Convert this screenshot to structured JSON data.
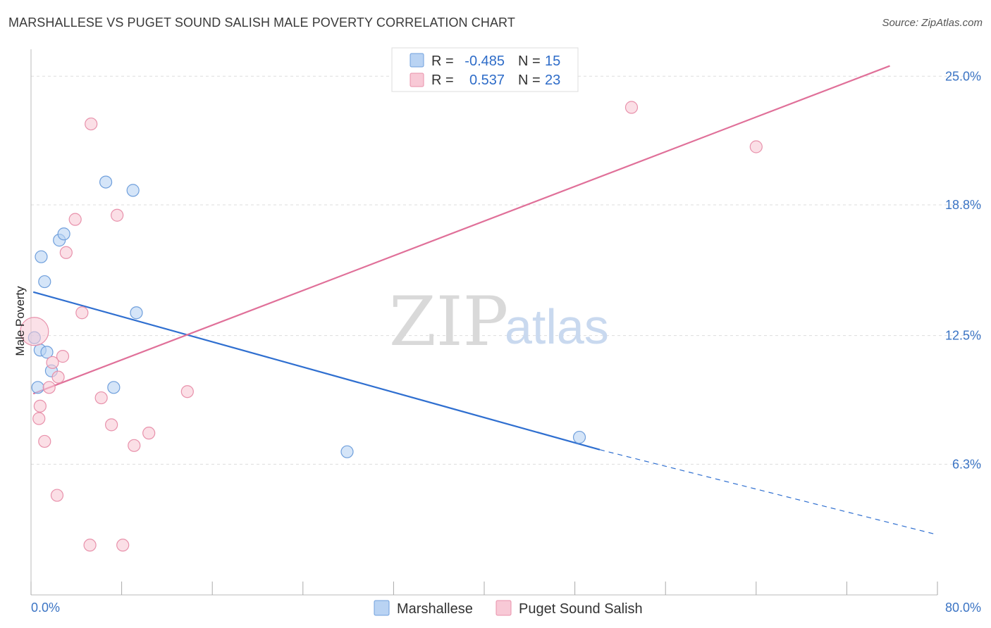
{
  "header": {
    "title": "MARSHALLESE VS PUGET SOUND SALISH MALE POVERTY CORRELATION CHART",
    "source": "Source: ZipAtlas.com"
  },
  "watermark": {
    "zip": "ZIP",
    "atlas": "atlas"
  },
  "colors": {
    "blue_fill": "#b9d3f3",
    "blue_stroke": "#6f9fdc",
    "blue_line": "#2f6fd0",
    "pink_fill": "#f8c9d6",
    "pink_stroke": "#e891ab",
    "pink_line": "#e07099",
    "grid": "#dddddd",
    "tick_text": "#3b74c4"
  },
  "chart_data": {
    "type": "scatter",
    "title": "MARSHALLESE VS PUGET SOUND SALISH MALE POVERTY CORRELATION CHART",
    "xlabel": "",
    "ylabel": "Male Poverty",
    "xlim": [
      0,
      80
    ],
    "ylim": [
      0,
      26.3
    ],
    "x_tick_labels": [
      "0.0%",
      "80.0%"
    ],
    "y_ticks": [
      {
        "value": 6.3,
        "label": "6.3%"
      },
      {
        "value": 12.5,
        "label": "12.5%"
      },
      {
        "value": 18.8,
        "label": "18.8%"
      },
      {
        "value": 25.0,
        "label": "25.0%"
      }
    ],
    "legend": [
      {
        "name": "Marshallese",
        "r_label": "R =",
        "r_value": "-0.485",
        "n_label": "N =",
        "n_value": "15"
      },
      {
        "name": "Puget Sound Salish",
        "r_label": "R =",
        "r_value": "0.537",
        "n_label": "N =",
        "n_value": "23"
      }
    ],
    "series": [
      {
        "name": "Marshallese",
        "points": [
          [
            0.3,
            12.4
          ],
          [
            0.8,
            11.8
          ],
          [
            1.4,
            11.7
          ],
          [
            1.8,
            10.8
          ],
          [
            0.6,
            10.0
          ],
          [
            0.9,
            16.3
          ],
          [
            1.2,
            15.1
          ],
          [
            2.5,
            17.1
          ],
          [
            2.9,
            17.4
          ],
          [
            6.6,
            19.9
          ],
          [
            9.0,
            19.5
          ],
          [
            9.3,
            13.6
          ],
          [
            7.3,
            10.0
          ],
          [
            27.9,
            6.9
          ],
          [
            48.4,
            7.6
          ]
        ],
        "trend": {
          "x0": 0.2,
          "y0": 14.6,
          "x1": 50.2,
          "y1": 7.0,
          "x_dash_end": 80.0,
          "y_dash_end": 2.9
        }
      },
      {
        "name": "Puget Sound Salish",
        "points": [
          [
            0.3,
            12.7
          ],
          [
            0.7,
            8.5
          ],
          [
            0.8,
            9.1
          ],
          [
            1.2,
            7.4
          ],
          [
            1.6,
            10.0
          ],
          [
            1.9,
            11.2
          ],
          [
            2.4,
            10.5
          ],
          [
            2.8,
            11.5
          ],
          [
            3.1,
            16.5
          ],
          [
            3.9,
            18.1
          ],
          [
            4.5,
            13.6
          ],
          [
            5.3,
            22.7
          ],
          [
            6.2,
            9.5
          ],
          [
            7.1,
            8.2
          ],
          [
            7.6,
            18.3
          ],
          [
            9.1,
            7.2
          ],
          [
            10.4,
            7.8
          ],
          [
            13.8,
            9.8
          ],
          [
            2.3,
            4.8
          ],
          [
            5.2,
            2.4
          ],
          [
            8.1,
            2.4
          ],
          [
            53.0,
            23.5
          ],
          [
            64.0,
            21.6
          ]
        ],
        "trend": {
          "x0": 0.2,
          "y0": 9.7,
          "x1": 75.8,
          "y1": 25.5
        }
      }
    ]
  }
}
